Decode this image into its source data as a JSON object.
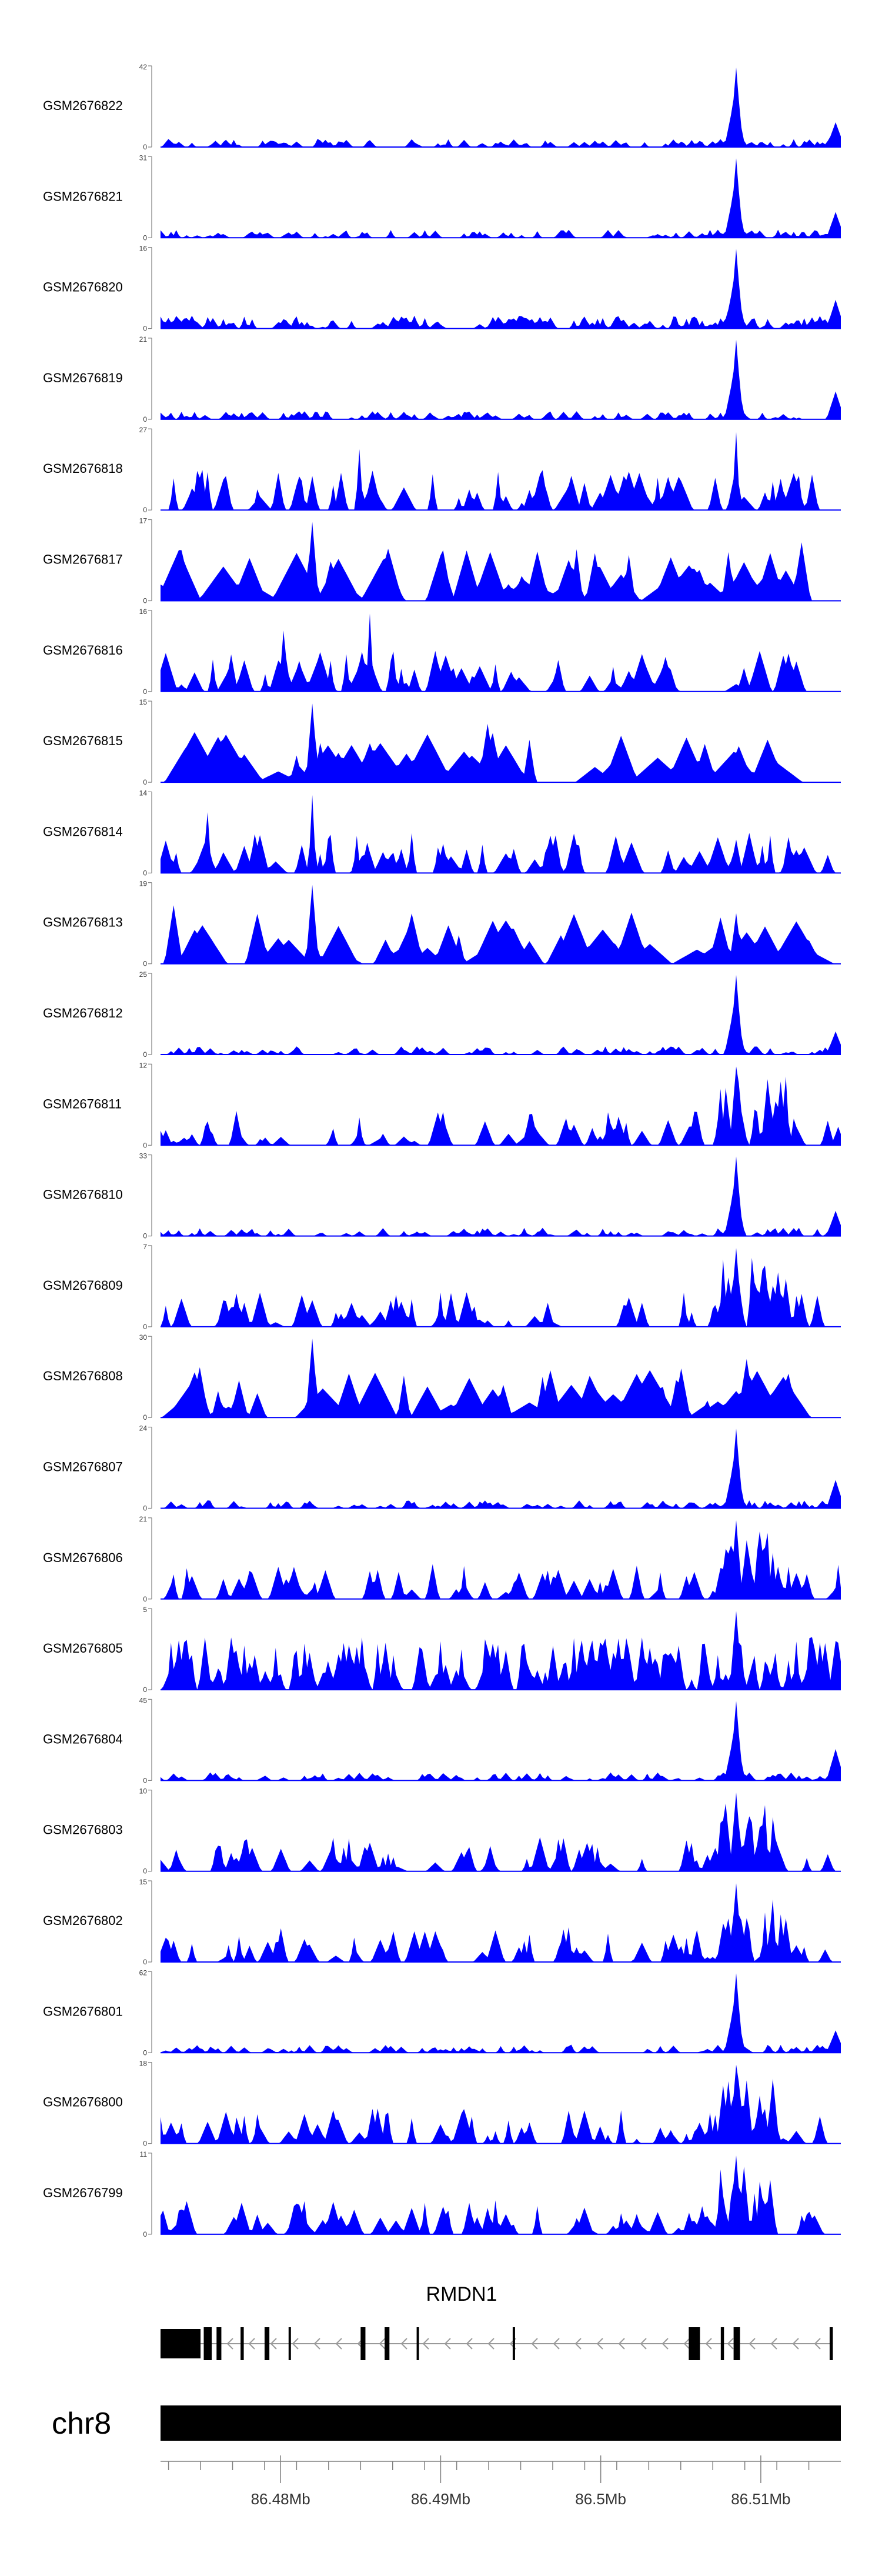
{
  "chart_data": {
    "type": "area",
    "x_unit": "Mb",
    "xlim": [
      86.4725,
      86.515
    ],
    "tracks": [
      {
        "name": "GSM2676822",
        "ymax": "42",
        "ymin": "0",
        "style": "sparse",
        "peak": 86.5085
      },
      {
        "name": "GSM2676821",
        "ymax": "31",
        "ymin": "0",
        "style": "sparse",
        "peak": 86.5085
      },
      {
        "name": "GSM2676820",
        "ymax": "16",
        "ymin": "0",
        "style": "dense",
        "peak": 86.5085
      },
      {
        "name": "GSM2676819",
        "ymax": "21",
        "ymin": "0",
        "style": "sparse",
        "peak": 86.5085
      },
      {
        "name": "GSM2676818",
        "ymax": "27",
        "ymin": "0",
        "style": "spiky",
        "peak": 86.5085
      },
      {
        "name": "GSM2676817",
        "ymax": "17",
        "ymin": "0",
        "style": "triangles",
        "peak": 86.482
      },
      {
        "name": "GSM2676816",
        "ymax": "16",
        "ymin": "0",
        "style": "spiky",
        "peak": 86.4855
      },
      {
        "name": "GSM2676815",
        "ymax": "15",
        "ymin": "0",
        "style": "triangles",
        "peak": 86.482
      },
      {
        "name": "GSM2676814",
        "ymax": "14",
        "ymin": "0",
        "style": "spiky",
        "peak": 86.482
      },
      {
        "name": "GSM2676813",
        "ymax": "19",
        "ymin": "0",
        "style": "triangles",
        "peak": 86.482
      },
      {
        "name": "GSM2676812",
        "ymax": "25",
        "ymin": "0",
        "style": "sparse",
        "peak": 86.5085
      },
      {
        "name": "GSM2676811",
        "ymax": "12",
        "ymin": "0",
        "style": "clustered",
        "peak": 86.5085
      },
      {
        "name": "GSM2676810",
        "ymax": "33",
        "ymin": "0",
        "style": "sparse",
        "peak": 86.5085
      },
      {
        "name": "GSM2676809",
        "ymax": "7",
        "ymin": "0",
        "style": "clustered",
        "peak": 86.5085
      },
      {
        "name": "GSM2676808",
        "ymax": "30",
        "ymin": "0",
        "style": "triangles",
        "peak": 86.482
      },
      {
        "name": "GSM2676807",
        "ymax": "24",
        "ymin": "0",
        "style": "sparse",
        "peak": 86.5085
      },
      {
        "name": "GSM2676806",
        "ymax": "21",
        "ymin": "0",
        "style": "clustered",
        "peak": 86.5085
      },
      {
        "name": "GSM2676805",
        "ymax": "5",
        "ymin": "0",
        "style": "dense-tall",
        "peak": 86.5085
      },
      {
        "name": "GSM2676804",
        "ymax": "45",
        "ymin": "0",
        "style": "sparse",
        "peak": 86.5085
      },
      {
        "name": "GSM2676803",
        "ymax": "10",
        "ymin": "0",
        "style": "clustered",
        "peak": 86.5085
      },
      {
        "name": "GSM2676802",
        "ymax": "15",
        "ymin": "0",
        "style": "clustered",
        "peak": 86.5085
      },
      {
        "name": "GSM2676801",
        "ymax": "62",
        "ymin": "0",
        "style": "sparse",
        "peak": 86.5085
      },
      {
        "name": "GSM2676800",
        "ymax": "18",
        "ymin": "0",
        "style": "clustered",
        "peak": 86.5085
      },
      {
        "name": "GSM2676799",
        "ymax": "11",
        "ymin": "0",
        "style": "clustered",
        "peak": 86.5085
      }
    ],
    "gene": {
      "name": "RMDN1",
      "strand": "-",
      "start": 86.4725,
      "end": 86.5145,
      "exons": [
        [
          86.4725,
          86.475
        ],
        [
          86.4752,
          86.4757
        ],
        [
          86.476,
          86.4763
        ],
        [
          86.4775,
          86.4777
        ],
        [
          86.479,
          86.4793
        ],
        [
          86.4805,
          86.4806
        ],
        [
          86.485,
          86.4853
        ],
        [
          86.4865,
          86.4868
        ],
        [
          86.4885,
          86.4886
        ],
        [
          86.4945,
          86.4946
        ],
        [
          86.5055,
          86.5062
        ],
        [
          86.5075,
          86.5077
        ],
        [
          86.5083,
          86.5087
        ],
        [
          86.5143,
          86.5145
        ]
      ]
    },
    "chromosome": "chr8",
    "ticks": [
      86.48,
      86.49,
      86.5,
      86.51
    ],
    "tick_labels": [
      "86.48Mb",
      "86.49Mb",
      "86.5Mb",
      "86.51Mb"
    ],
    "minor_ticks": [
      86.473,
      86.475,
      86.477,
      86.479,
      86.481,
      86.483,
      86.485,
      86.487,
      86.489,
      86.491,
      86.493,
      86.495,
      86.497,
      86.499,
      86.501,
      86.503,
      86.505,
      86.507,
      86.509,
      86.511,
      86.513
    ],
    "colors": {
      "signal": "#0000ff",
      "gene": "#000000",
      "chrom": "#000000",
      "axis": "#808080"
    }
  }
}
